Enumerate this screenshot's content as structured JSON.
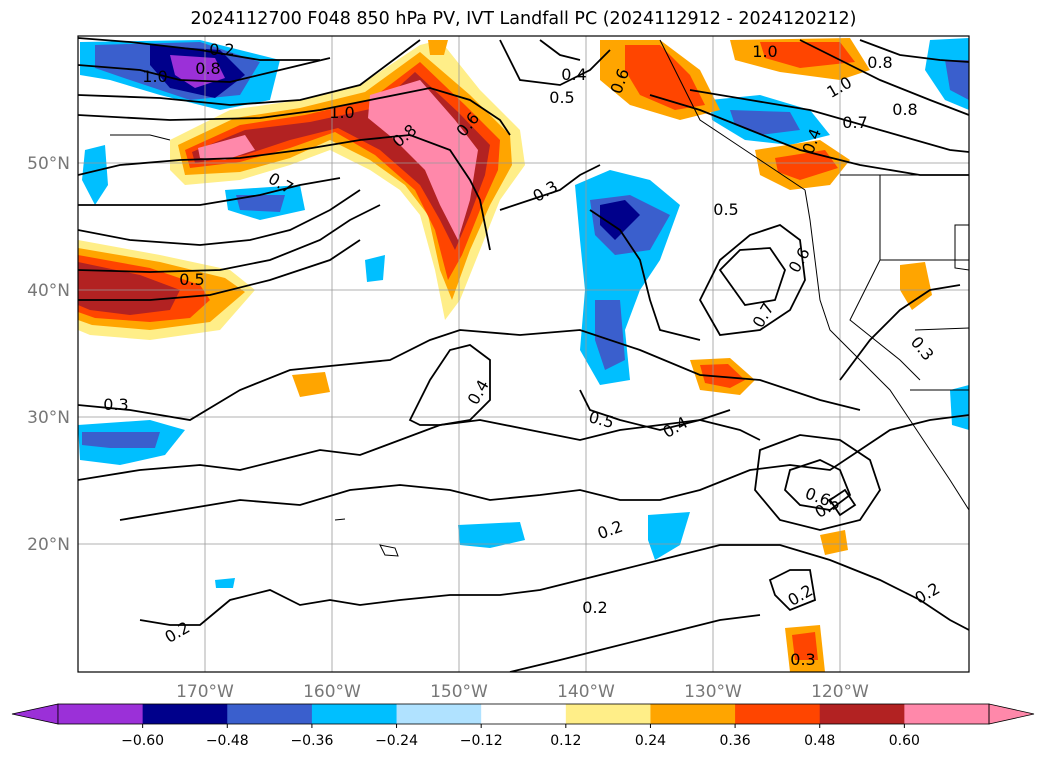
{
  "title": "2024112700 F048 850 hPa PV, IVT Landfall PC (2024112912 - 2024120212)",
  "map": {
    "lon_ticks": [
      "170°W",
      "160°W",
      "150°W",
      "140°W",
      "130°W",
      "120°W"
    ],
    "lat_ticks": [
      "50°N",
      "40°N",
      "30°N",
      "20°N"
    ]
  },
  "contour_labels": [
    "1.0",
    "0.8",
    "0.2",
    "1.0",
    "0.8",
    "1.0",
    "0.8",
    "0.6",
    "0.4",
    "0.5",
    "0.6",
    "1.0",
    "0.8",
    "0.7",
    "0.4",
    "0.7",
    "0.3",
    "0.5",
    "0.5",
    "0.6",
    "0.7",
    "0.3",
    "0.3",
    "0.4",
    "0.5",
    "0.4",
    "0.2",
    "0.6",
    "0.5",
    "0.2",
    "0.2",
    "0.2",
    "0.2",
    "0.3"
  ],
  "colorbar": {
    "colors": [
      "#9b30d8",
      "#00008b",
      "#3a5fcd",
      "#00bfff",
      "#b0e2ff",
      "#ffffff",
      "#ffee88",
      "#ffa500",
      "#ff4500",
      "#b22222",
      "#ff88aa"
    ],
    "labels": [
      "−0.60",
      "−0.48",
      "−0.36",
      "−0.24",
      "−0.12",
      "0.12",
      "0.24",
      "0.36",
      "0.48",
      "0.60"
    ]
  }
}
